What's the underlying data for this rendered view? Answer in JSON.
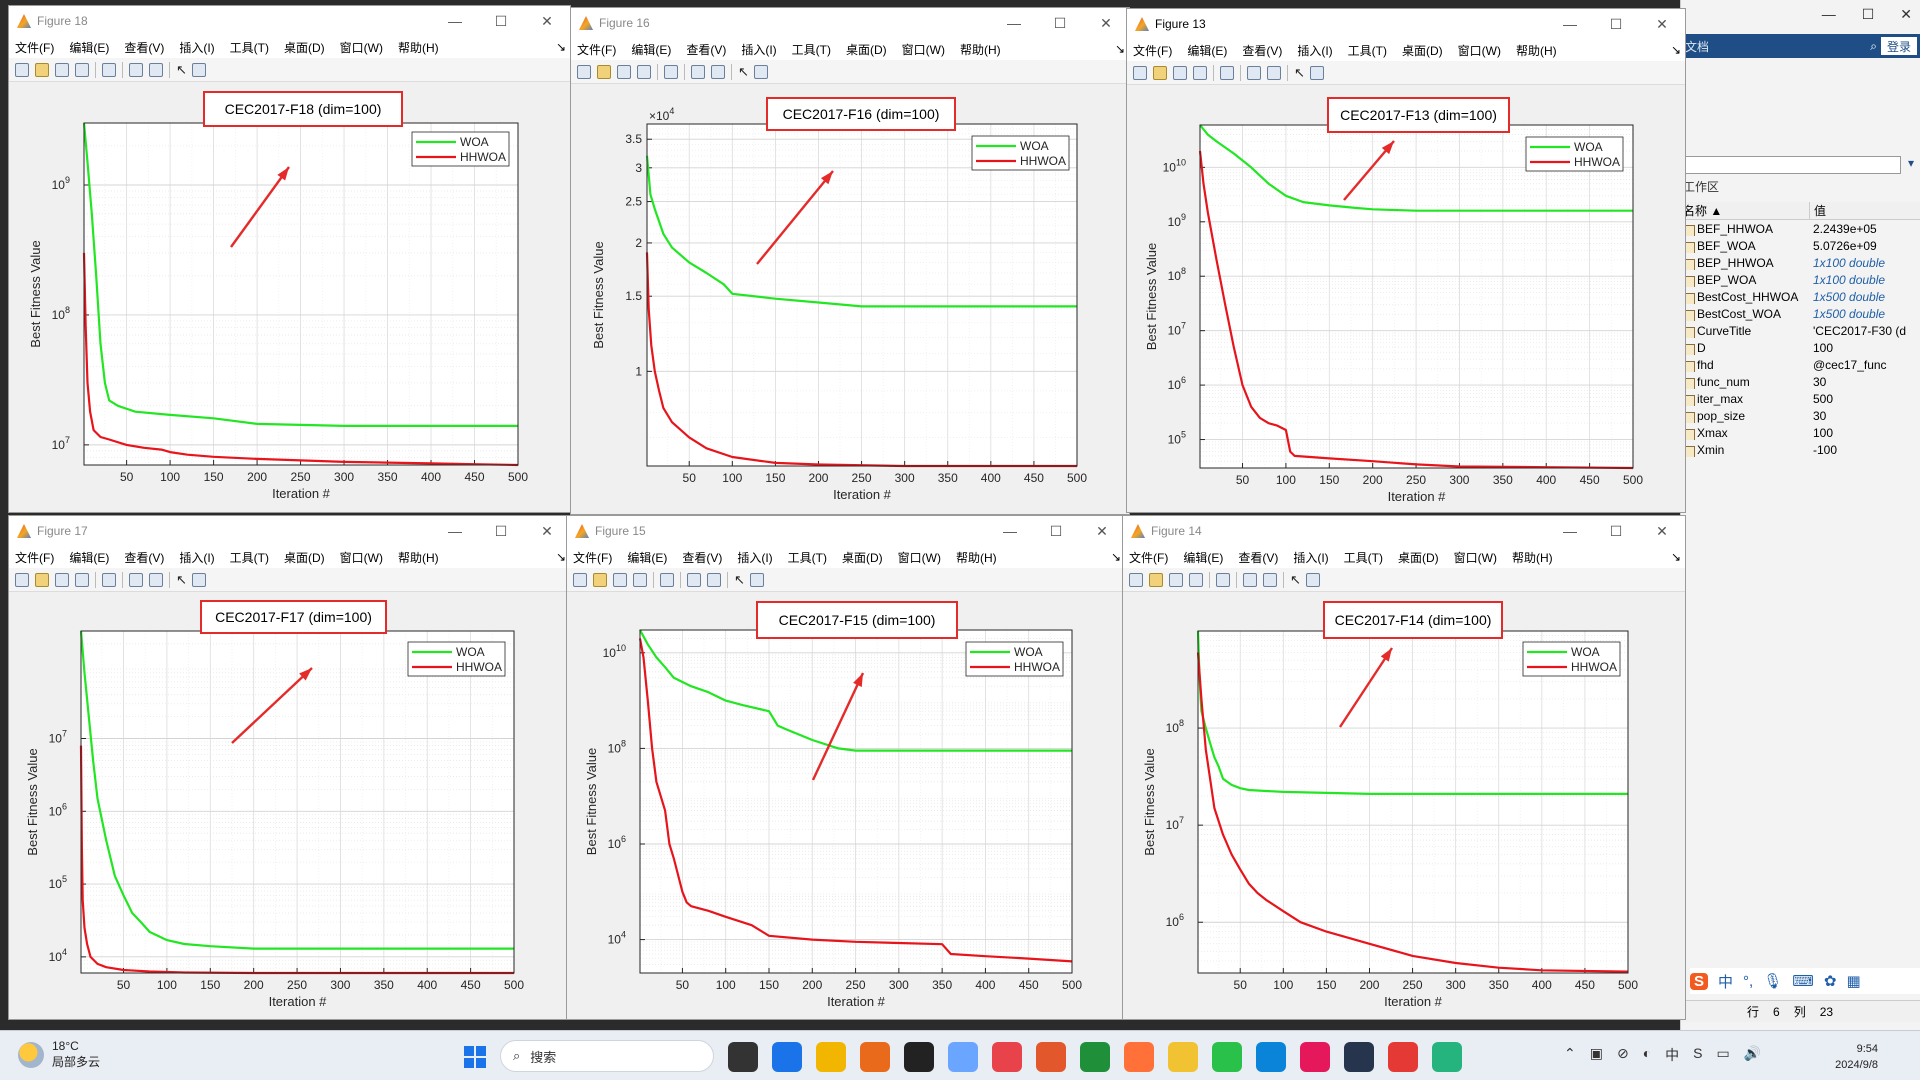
{
  "background_window": {
    "search_placeholder": "文档",
    "login": "登录",
    "workspace_label": "工作区",
    "columns": [
      "名称 ▲",
      "值"
    ],
    "variables": [
      {
        "name": "BEF_HHWOA",
        "value": "2.2439e+05",
        "italic": false
      },
      {
        "name": "BEF_WOA",
        "value": "5.0726e+09",
        "italic": false
      },
      {
        "name": "BEP_HHWOA",
        "value": "1x100 double",
        "italic": true
      },
      {
        "name": "BEP_WOA",
        "value": "1x100 double",
        "italic": true
      },
      {
        "name": "BestCost_HHWOA",
        "value": "1x500 double",
        "italic": true
      },
      {
        "name": "BestCost_WOA",
        "value": "1x500 double",
        "italic": true
      },
      {
        "name": "CurveTitle",
        "value": "'CEC2017-F30 (d",
        "italic": false
      },
      {
        "name": "D",
        "value": "100",
        "italic": false
      },
      {
        "name": "fhd",
        "value": "@cec17_func",
        "italic": false
      },
      {
        "name": "func_num",
        "value": "30",
        "italic": false
      },
      {
        "name": "iter_max",
        "value": "500",
        "italic": false
      },
      {
        "name": "pop_size",
        "value": "30",
        "italic": false
      },
      {
        "name": "Xmax",
        "value": "100",
        "italic": false
      },
      {
        "name": "Xmin",
        "value": "-100",
        "italic": false
      }
    ],
    "status_row_label": "行",
    "status_row": "6",
    "status_col_label": "列",
    "status_col": "23",
    "ime_label": "中"
  },
  "menu_items": [
    "文件(F)",
    "编辑(E)",
    "查看(V)",
    "插入(I)",
    "工具(T)",
    "桌面(D)",
    "窗口(W)",
    "帮助(H)"
  ],
  "legend": [
    "WOA",
    "HHWOA"
  ],
  "colors": {
    "woa": "#22e622",
    "hhwoa": "#e8141b",
    "annotation": "#e52a2a"
  },
  "xlabel": "Iteration #",
  "ylabel": "Best Fitness Value",
  "figures": [
    {
      "window_title": "Figure 18",
      "active": false,
      "chart_data": {
        "type": "line",
        "title": "CEC2017-F18 (dim=100)",
        "yscale": "log",
        "xlim": [
          1,
          500
        ],
        "ylim": [
          7000000,
          3000000000
        ],
        "xticks": [
          "50",
          "100",
          "150",
          "200",
          "250",
          "300",
          "350",
          "400",
          "450",
          "500"
        ],
        "yticks": [
          {
            "label": "10",
            "exp": "7",
            "value": 10000000
          },
          {
            "label": "10",
            "exp": "8",
            "value": 100000000
          },
          {
            "label": "10",
            "exp": "9",
            "value": 1000000000
          }
        ],
        "series": [
          {
            "name": "WOA",
            "x": [
              1,
              5,
              10,
              15,
              20,
              25,
              30,
              40,
              60,
              100,
              150,
              200,
              300,
              400,
              500
            ],
            "y": [
              3000000000,
              1500000000,
              600000000,
              200000000,
              60000000,
              30000000,
              22000000,
              20000000,
              18000000,
              17000000,
              16000000,
              14500000,
              14000000,
              14000000,
              14000000
            ]
          },
          {
            "name": "HHWOA",
            "x": [
              1,
              3,
              5,
              8,
              12,
              20,
              30,
              50,
              70,
              90,
              100,
              120,
              150,
              200,
              250,
              300,
              350,
              400,
              450,
              500
            ],
            "y": [
              300000000,
              80000000,
              30000000,
              18000000,
              13000000,
              11500000,
              11000000,
              10000000,
              9500000,
              9200000,
              8800000,
              8400000,
              8100000,
              7800000,
              7600000,
              7400000,
              7300000,
              7200000,
              7100000,
              7000000
            ]
          }
        ]
      }
    },
    {
      "window_title": "Figure 16",
      "active": false,
      "chart_data": {
        "type": "line",
        "title": "CEC2017-F16 (dim=100)",
        "yscale": "log",
        "multiplier": "×10",
        "multiplier_exp": "4",
        "xlim": [
          1,
          500
        ],
        "ylim": [
          0.6,
          3.8
        ],
        "xticks": [
          "50",
          "100",
          "150",
          "200",
          "250",
          "300",
          "350",
          "400",
          "450",
          "500"
        ],
        "yticks": [
          {
            "label": "1",
            "value": 1
          },
          {
            "label": "1.5",
            "value": 1.5
          },
          {
            "label": "2",
            "value": 2
          },
          {
            "label": "2.5",
            "value": 2.5
          },
          {
            "label": "3",
            "value": 3
          },
          {
            "label": "3.5",
            "value": 3.5
          }
        ],
        "series": [
          {
            "name": "WOA",
            "x": [
              1,
              5,
              10,
              20,
              30,
              50,
              60,
              70,
              90,
              100,
              150,
              200,
              250,
              300,
              400,
              500
            ],
            "y": [
              3.2,
              2.6,
              2.4,
              2.1,
              1.95,
              1.8,
              1.75,
              1.7,
              1.6,
              1.52,
              1.48,
              1.45,
              1.42,
              1.42,
              1.42,
              1.42
            ]
          },
          {
            "name": "HHWOA",
            "x": [
              1,
              3,
              6,
              10,
              15,
              20,
              30,
              50,
              70,
              100,
              150,
              200,
              300,
              400,
              500
            ],
            "y": [
              1.9,
              1.4,
              1.15,
              1.0,
              0.9,
              0.82,
              0.76,
              0.7,
              0.66,
              0.63,
              0.61,
              0.605,
              0.6,
              0.6,
              0.6
            ]
          }
        ]
      }
    },
    {
      "window_title": "Figure 13",
      "active": true,
      "chart_data": {
        "type": "line",
        "title": "CEC2017-F13 (dim=100)",
        "yscale": "log",
        "xlim": [
          1,
          500
        ],
        "ylim": [
          30000,
          60000000000
        ],
        "xticks": [
          "50",
          "100",
          "150",
          "200",
          "250",
          "300",
          "350",
          "400",
          "450",
          "500"
        ],
        "yticks": [
          {
            "label": "10",
            "exp": "5",
            "value": 100000
          },
          {
            "label": "10",
            "exp": "6",
            "value": 1000000
          },
          {
            "label": "10",
            "exp": "7",
            "value": 10000000
          },
          {
            "label": "10",
            "exp": "8",
            "value": 100000000
          },
          {
            "label": "10",
            "exp": "9",
            "value": 1000000000
          },
          {
            "label": "10",
            "exp": "10",
            "value": 10000000000
          }
        ],
        "series": [
          {
            "name": "WOA",
            "x": [
              1,
              10,
              20,
              40,
              60,
              80,
              100,
              120,
              150,
              180,
              200,
              250,
              300,
              400,
              500
            ],
            "y": [
              60000000000,
              40000000000,
              30000000000,
              18000000000,
              10000000000,
              5000000000,
              3000000000,
              2300000000,
              2000000000,
              1800000000,
              1700000000,
              1600000000,
              1600000000,
              1600000000,
              1600000000
            ]
          },
          {
            "name": "HHWOA",
            "x": [
              1,
              5,
              10,
              20,
              30,
              40,
              50,
              60,
              70,
              80,
              90,
              100,
              105,
              110,
              150,
              200,
              250,
              300,
              400,
              500
            ],
            "y": [
              20000000000,
              5000000000,
              1500000000,
              200000000,
              30000000,
              5000000,
              1000000,
              400000,
              250000,
              200000,
              180000,
              150000,
              60000,
              50000,
              45000,
              40000,
              35000,
              32000,
              31000,
              30000
            ]
          }
        ]
      }
    },
    {
      "window_title": "Figure 17",
      "active": false,
      "chart_data": {
        "type": "line",
        "title": "CEC2017-F17 (dim=100)",
        "yscale": "log",
        "xlim": [
          1,
          500
        ],
        "ylim": [
          6000,
          300000000
        ],
        "xticks": [
          "50",
          "100",
          "150",
          "200",
          "250",
          "300",
          "350",
          "400",
          "450",
          "500"
        ],
        "yticks": [
          {
            "label": "10",
            "exp": "4",
            "value": 10000
          },
          {
            "label": "10",
            "exp": "5",
            "value": 100000
          },
          {
            "label": "10",
            "exp": "6",
            "value": 1000000
          },
          {
            "label": "10",
            "exp": "7",
            "value": 10000000
          }
        ],
        "series": [
          {
            "name": "WOA",
            "x": [
              1,
              5,
              10,
              15,
              20,
              30,
              40,
              50,
              60,
              70,
              80,
              100,
              120,
              150,
              200,
              300,
              400,
              500
            ],
            "y": [
              300000000,
              80000000,
              20000000,
              5000000,
              1500000,
              400000,
              130000,
              70000,
              40000,
              30000,
              22000,
              17000,
              15000,
              14000,
              13000,
              13000,
              13000,
              13000
            ]
          },
          {
            "name": "HHWOA",
            "x": [
              1,
              2,
              3,
              5,
              8,
              12,
              20,
              30,
              50,
              80,
              120,
              200,
              300,
              400,
              500
            ],
            "y": [
              8000000,
              300000,
              60000,
              25000,
              15000,
              10000,
              8000,
              7200,
              6600,
              6300,
              6100,
              6000,
              6000,
              6000,
              6000
            ]
          }
        ]
      }
    },
    {
      "window_title": "Figure 15",
      "active": false,
      "chart_data": {
        "type": "line",
        "title": "CEC2017-F15 (dim=100)",
        "yscale": "log",
        "xlim": [
          1,
          500
        ],
        "ylim": [
          2000,
          30000000000
        ],
        "xticks": [
          "50",
          "100",
          "150",
          "200",
          "250",
          "300",
          "350",
          "400",
          "450",
          "500"
        ],
        "yticks": [
          {
            "label": "10",
            "exp": "4",
            "value": 10000
          },
          {
            "label": "10",
            "exp": "6",
            "value": 1000000
          },
          {
            "label": "10",
            "exp": "8",
            "value": 100000000
          },
          {
            "label": "10",
            "exp": "10",
            "value": 10000000000
          }
        ],
        "series": [
          {
            "name": "WOA",
            "x": [
              1,
              10,
              20,
              30,
              40,
              60,
              80,
              100,
              120,
              150,
              160,
              170,
              200,
              230,
              250,
              300,
              400,
              500
            ],
            "y": [
              30000000000,
              15000000000,
              8000000000,
              5000000000,
              3000000000,
              2000000000,
              1500000000,
              1000000000,
              800000000,
              600000000,
              300000000,
              250000000,
              150000000,
              100000000,
              90000000,
              90000000,
              90000000,
              90000000
            ]
          },
          {
            "name": "HHWOA",
            "x": [
              1,
              5,
              10,
              15,
              20,
              30,
              35,
              40,
              50,
              55,
              60,
              80,
              100,
              130,
              150,
              200,
              250,
              300,
              350,
              360,
              400,
              450,
              500
            ],
            "y": [
              20000000000,
              8000000000,
              1000000000,
              100000000,
              20000000,
              5000000,
              1000000,
              500000,
              100000,
              60000,
              50000,
              40000,
              30000,
              20000,
              12000,
              10000,
              9000,
              8500,
              8000,
              5000,
              4500,
              4000,
              3500
            ]
          }
        ]
      }
    },
    {
      "window_title": "Figure 14",
      "active": false,
      "chart_data": {
        "type": "line",
        "title": "CEC2017-F14 (dim=100)",
        "yscale": "log",
        "xlim": [
          1,
          500
        ],
        "ylim": [
          300000,
          1000000000
        ],
        "xticks": [
          "50",
          "100",
          "150",
          "200",
          "250",
          "300",
          "350",
          "400",
          "450",
          "500"
        ],
        "yticks": [
          {
            "label": "10",
            "exp": "6",
            "value": 1000000
          },
          {
            "label": "10",
            "exp": "7",
            "value": 10000000
          },
          {
            "label": "10",
            "exp": "8",
            "value": 100000000
          }
        ],
        "series": [
          {
            "name": "WOA",
            "x": [
              1,
              3,
              5,
              10,
              15,
              20,
              25,
              30,
              40,
              50,
              60,
              80,
              100,
              150,
              200,
              300,
              400,
              500
            ],
            "y": [
              1000000000,
              300000000,
              150000000,
              100000000,
              70000000,
              50000000,
              40000000,
              30000000,
              26000000,
              24000000,
              23000000,
              22500000,
              22000000,
              21500000,
              21000000,
              21000000,
              21000000,
              21000000
            ]
          },
          {
            "name": "HHWOA",
            "x": [
              1,
              5,
              10,
              15,
              20,
              30,
              40,
              50,
              60,
              70,
              80,
              100,
              120,
              150,
              200,
              250,
              300,
              350,
              400,
              500
            ],
            "y": [
              600000000,
              200000000,
              60000000,
              30000000,
              15000000,
              8000000,
              5000000,
              3500000,
              2500000,
              2000000,
              1700000,
              1300000,
              1000000,
              800000,
              600000,
              450000,
              380000,
              340000,
              320000,
              310000
            ]
          }
        ]
      }
    }
  ],
  "taskbar": {
    "weather_temp": "18°C",
    "weather_desc": "局部多云",
    "search_label": "搜索",
    "time": "9:54",
    "date": "2024/9/8"
  }
}
